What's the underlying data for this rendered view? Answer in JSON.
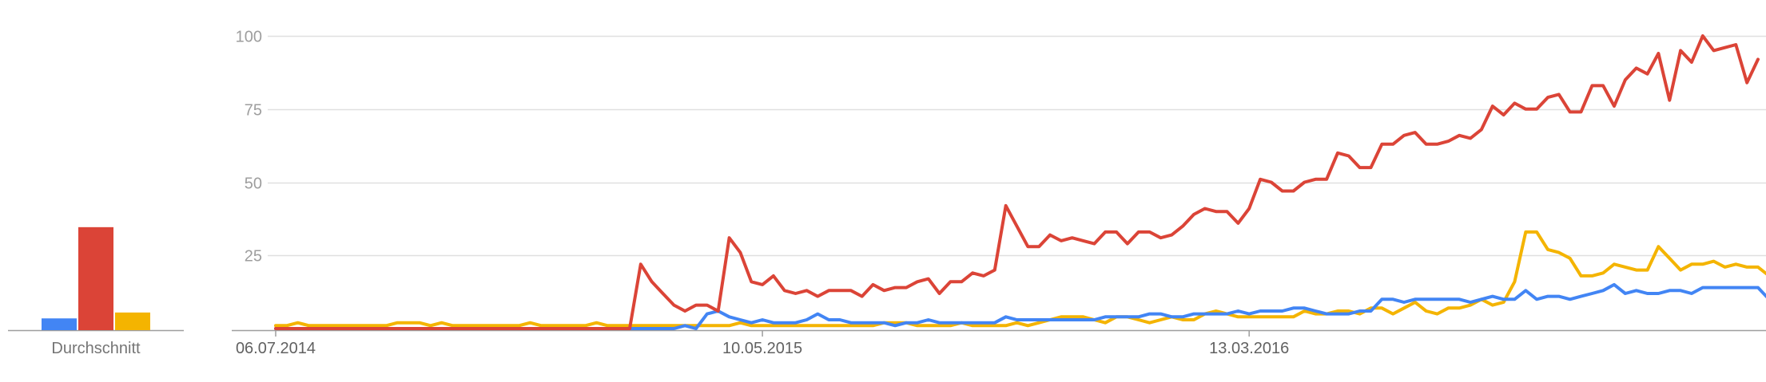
{
  "chart_data": [
    {
      "type": "bar",
      "xlabel": "Durchschnitt",
      "ylim": [
        0,
        100
      ],
      "series": [
        {
          "color": "#4285f4",
          "values": [
            4
          ]
        },
        {
          "color": "#db4437",
          "values": [
            35
          ]
        },
        {
          "color": "#f4b400",
          "values": [
            6
          ]
        }
      ]
    },
    {
      "type": "line",
      "x_start": "06.07.2014",
      "ylim": [
        0,
        100
      ],
      "yticks": [
        25,
        50,
        75,
        100
      ],
      "xticks": [
        "06.07.2014",
        "10.05.2015",
        "13.03.2016"
      ],
      "grid": true,
      "series": [
        {
          "color": "#db4437",
          "values": [
            0,
            0,
            0,
            0,
            0,
            0,
            0,
            0,
            0,
            0,
            0,
            0,
            0,
            0,
            0,
            0,
            0,
            0,
            0,
            0,
            0,
            0,
            0,
            0,
            0,
            0,
            0,
            0,
            0,
            0,
            0,
            0,
            0,
            22,
            16,
            12,
            8,
            6,
            8,
            8,
            6,
            31,
            26,
            16,
            15,
            18,
            13,
            12,
            13,
            11,
            13,
            13,
            13,
            11,
            15,
            13,
            14,
            14,
            16,
            17,
            12,
            16,
            16,
            19,
            18,
            20,
            42,
            35,
            28,
            28,
            32,
            30,
            31,
            30,
            29,
            33,
            33,
            29,
            33,
            33,
            31,
            32,
            35,
            39,
            41,
            40,
            40,
            36,
            41,
            51,
            50,
            47,
            47,
            50,
            51,
            51,
            60,
            59,
            55,
            55,
            63,
            63,
            66,
            67,
            63,
            63,
            64,
            66,
            65,
            68,
            76,
            73,
            77,
            75,
            75,
            79,
            80,
            74,
            74,
            83,
            83,
            76,
            85,
            89,
            87,
            94,
            78,
            95,
            91,
            100,
            95,
            96,
            97,
            84,
            92
          ]
        },
        {
          "color": "#4285f4",
          "values": [
            0,
            0,
            0,
            0,
            0,
            0,
            0,
            0,
            0,
            0,
            0,
            0,
            0,
            0,
            0,
            0,
            0,
            0,
            0,
            0,
            0,
            0,
            0,
            0,
            0,
            0,
            0,
            0,
            0,
            0,
            0,
            0,
            0,
            0,
            0,
            0,
            0,
            1,
            0,
            5,
            6,
            4,
            3,
            2,
            3,
            2,
            2,
            2,
            3,
            5,
            3,
            3,
            2,
            2,
            2,
            2,
            1,
            2,
            2,
            3,
            2,
            2,
            2,
            2,
            2,
            2,
            4,
            3,
            3,
            3,
            3,
            3,
            3,
            3,
            3,
            4,
            4,
            4,
            4,
            5,
            5,
            4,
            4,
            5,
            5,
            5,
            5,
            6,
            5,
            6,
            6,
            6,
            7,
            7,
            6,
            5,
            5,
            5,
            6,
            6,
            10,
            10,
            9,
            10,
            10,
            10,
            10,
            10,
            9,
            10,
            11,
            10,
            10,
            13,
            10,
            11,
            11,
            10,
            11,
            12,
            13,
            15,
            12,
            13,
            12,
            12,
            13,
            13,
            12,
            14,
            14,
            14,
            14,
            14,
            14,
            10,
            13
          ]
        },
        {
          "color": "#f4b400",
          "values": [
            1,
            1,
            2,
            1,
            1,
            1,
            1,
            1,
            1,
            1,
            1,
            2,
            2,
            2,
            1,
            2,
            1,
            1,
            1,
            1,
            1,
            1,
            1,
            2,
            1,
            1,
            1,
            1,
            1,
            2,
            1,
            1,
            1,
            1,
            1,
            1,
            1,
            1,
            1,
            1,
            1,
            1,
            2,
            1,
            1,
            1,
            1,
            1,
            1,
            1,
            1,
            1,
            1,
            1,
            1,
            2,
            2,
            2,
            1,
            1,
            1,
            1,
            2,
            1,
            1,
            1,
            1,
            2,
            1,
            2,
            3,
            4,
            4,
            4,
            3,
            2,
            4,
            4,
            3,
            2,
            3,
            4,
            3,
            3,
            5,
            6,
            5,
            4,
            4,
            4,
            4,
            4,
            4,
            6,
            5,
            5,
            6,
            6,
            5,
            7,
            7,
            5,
            7,
            9,
            6,
            5,
            7,
            7,
            8,
            10,
            8,
            9,
            16,
            33,
            33,
            27,
            26,
            24,
            18,
            18,
            19,
            22,
            21,
            20,
            20,
            28,
            24,
            20,
            22,
            22,
            23,
            21,
            22,
            21,
            21,
            18,
            20
          ]
        }
      ]
    }
  ]
}
